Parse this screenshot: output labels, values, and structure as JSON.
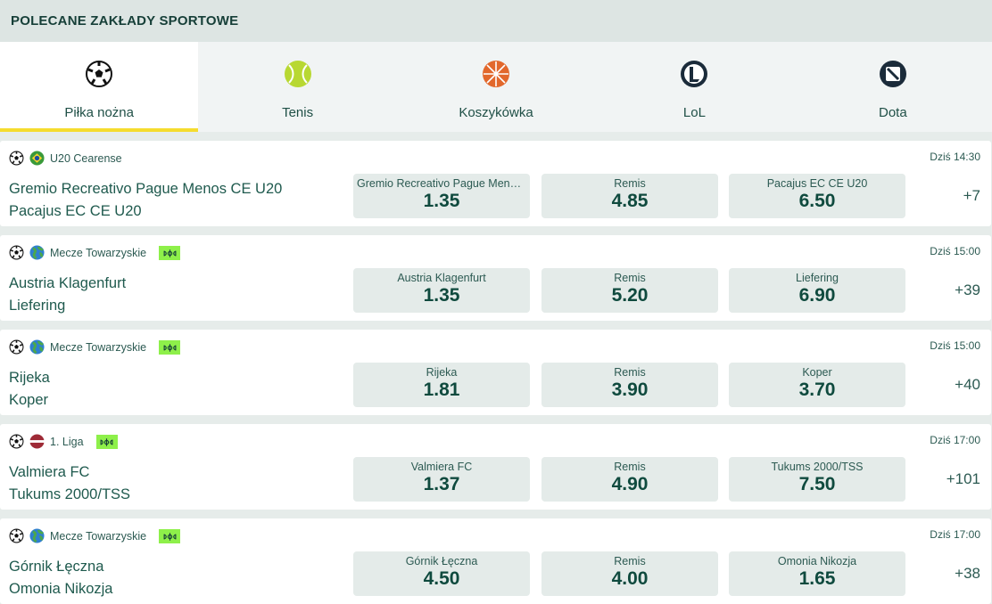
{
  "title": "POLECANE ZAKŁADY SPORTOWE",
  "tabs": [
    {
      "label": "Piłka nożna",
      "icon": "soccer-ball-icon",
      "active": true
    },
    {
      "label": "Tenis",
      "icon": "tennis-ball-icon"
    },
    {
      "label": "Koszykówka",
      "icon": "basketball-icon"
    },
    {
      "label": "LoL",
      "icon": "lol-icon"
    },
    {
      "label": "Dota",
      "icon": "dota-icon"
    }
  ],
  "colors": {
    "accent": "#f5dc2e",
    "live": "#8ef04a",
    "text": "#1f4f46"
  },
  "events": [
    {
      "league": "U20 Cearense",
      "flag": "brazil",
      "live": false,
      "time": "Dziś 14:30",
      "home": "Gremio Recreativo Pague Menos CE U20",
      "away": "Pacajus EC CE U20",
      "odds": [
        {
          "name": "Gremio Recreativo Pague Menos CE U20",
          "value": "1.35"
        },
        {
          "name": "Remis",
          "value": "4.85"
        },
        {
          "name": "Pacajus EC CE U20",
          "value": "6.50"
        }
      ],
      "more": "+7"
    },
    {
      "league": "Mecze Towarzyskie",
      "flag": "world",
      "live": true,
      "time": "Dziś 15:00",
      "home": "Austria Klagenfurt",
      "away": "Liefering",
      "odds": [
        {
          "name": "Austria Klagenfurt",
          "value": "1.35"
        },
        {
          "name": "Remis",
          "value": "5.20"
        },
        {
          "name": "Liefering",
          "value": "6.90"
        }
      ],
      "more": "+39"
    },
    {
      "league": "Mecze Towarzyskie",
      "flag": "world",
      "live": true,
      "time": "Dziś 15:00",
      "home": "Rijeka",
      "away": "Koper",
      "odds": [
        {
          "name": "Rijeka",
          "value": "1.81"
        },
        {
          "name": "Remis",
          "value": "3.90"
        },
        {
          "name": "Koper",
          "value": "3.70"
        }
      ],
      "more": "+40"
    },
    {
      "league": "1. Liga",
      "flag": "latvia",
      "live": true,
      "time": "Dziś 17:00",
      "home": "Valmiera FC",
      "away": "Tukums 2000/TSS",
      "odds": [
        {
          "name": "Valmiera FC",
          "value": "1.37"
        },
        {
          "name": "Remis",
          "value": "4.90"
        },
        {
          "name": "Tukums 2000/TSS",
          "value": "7.50"
        }
      ],
      "more": "+101"
    },
    {
      "league": "Mecze Towarzyskie",
      "flag": "world",
      "live": true,
      "time": "Dziś 17:00",
      "home": "Górnik Łęczna",
      "away": "Omonia Nikozja",
      "odds": [
        {
          "name": "Górnik Łęczna",
          "value": "4.50"
        },
        {
          "name": "Remis",
          "value": "4.00"
        },
        {
          "name": "Omonia Nikozja",
          "value": "1.65"
        }
      ],
      "more": "+38"
    }
  ]
}
